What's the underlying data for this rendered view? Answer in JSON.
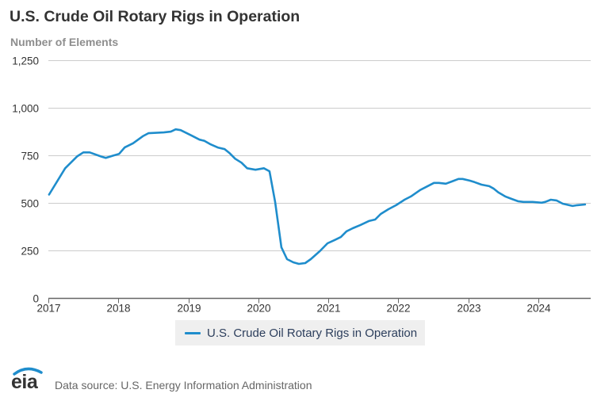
{
  "header": {
    "title": "U.S. Crude Oil Rotary Rigs in Operation",
    "subtitle": "Number of Elements"
  },
  "legend": {
    "items": [
      {
        "label": "U.S. Crude Oil Rotary Rigs in Operation",
        "color": "#1f8dcc"
      }
    ]
  },
  "footer": {
    "logo_text": "eia",
    "source_text": "Data source: U.S. Energy Information Administration"
  },
  "colors": {
    "series": "#1f8dcc",
    "grid": "#cccccc",
    "axis": "#666666"
  },
  "chart_data": {
    "type": "line",
    "title": "U.S. Crude Oil Rotary Rigs in Operation",
    "subtitle": "Number of Elements",
    "xlabel": "",
    "ylabel": "Number of Elements",
    "xlim": [
      2017.0,
      2024.75
    ],
    "ylim": [
      0,
      1250
    ],
    "x_ticks": [
      2017,
      2018,
      2019,
      2020,
      2021,
      2022,
      2023,
      2024
    ],
    "x_tick_labels": [
      "2017",
      "2018",
      "2019",
      "2020",
      "2021",
      "2022",
      "2023",
      "2024"
    ],
    "y_ticks": [
      0,
      250,
      500,
      750,
      1000,
      1250
    ],
    "y_tick_labels": [
      "0",
      "250",
      "500",
      "750",
      "1,000",
      "1,250"
    ],
    "grid": true,
    "legend_position": "bottom-center",
    "series": [
      {
        "name": "U.S. Crude Oil Rotary Rigs in Operation",
        "x": [
          2017.01,
          2017.24,
          2017.41,
          2017.5,
          2017.59,
          2017.75,
          2017.82,
          2017.93,
          2018.01,
          2018.09,
          2018.21,
          2018.35,
          2018.43,
          2018.65,
          2018.75,
          2018.82,
          2018.89,
          2019.05,
          2019.16,
          2019.23,
          2019.31,
          2019.42,
          2019.52,
          2019.59,
          2019.67,
          2019.76,
          2019.84,
          2019.96,
          2020.08,
          2020.16,
          2020.24,
          2020.33,
          2020.41,
          2020.5,
          2020.58,
          2020.67,
          2020.75,
          2020.88,
          2020.99,
          2021.09,
          2021.18,
          2021.26,
          2021.35,
          2021.46,
          2021.58,
          2021.67,
          2021.75,
          2021.86,
          2021.97,
          2022.09,
          2022.18,
          2022.31,
          2022.4,
          2022.51,
          2022.58,
          2022.68,
          2022.77,
          2022.86,
          2022.92,
          2023.02,
          2023.09,
          2023.19,
          2023.3,
          2023.36,
          2023.43,
          2023.53,
          2023.62,
          2023.71,
          2023.79,
          2023.92,
          2024.05,
          2024.1,
          2024.18,
          2024.26,
          2024.35,
          2024.49,
          2024.56,
          2024.67
        ],
        "values": [
          543,
          681,
          743,
          764,
          764,
          743,
          735,
          748,
          756,
          790,
          812,
          849,
          865,
          869,
          873,
          885,
          881,
          852,
          831,
          825,
          808,
          790,
          781,
          760,
          731,
          710,
          681,
          673,
          681,
          665,
          504,
          266,
          204,
          187,
          179,
          183,
          204,
          246,
          287,
          304,
          320,
          350,
          366,
          383,
          404,
          412,
          441,
          466,
          487,
          516,
          533,
          566,
          583,
          604,
          604,
          600,
          612,
          625,
          625,
          616,
          608,
          595,
          587,
          575,
          554,
          533,
          520,
          508,
          504,
          504,
          500,
          504,
          516,
          512,
          495,
          483,
          487,
          491
        ]
      }
    ]
  }
}
